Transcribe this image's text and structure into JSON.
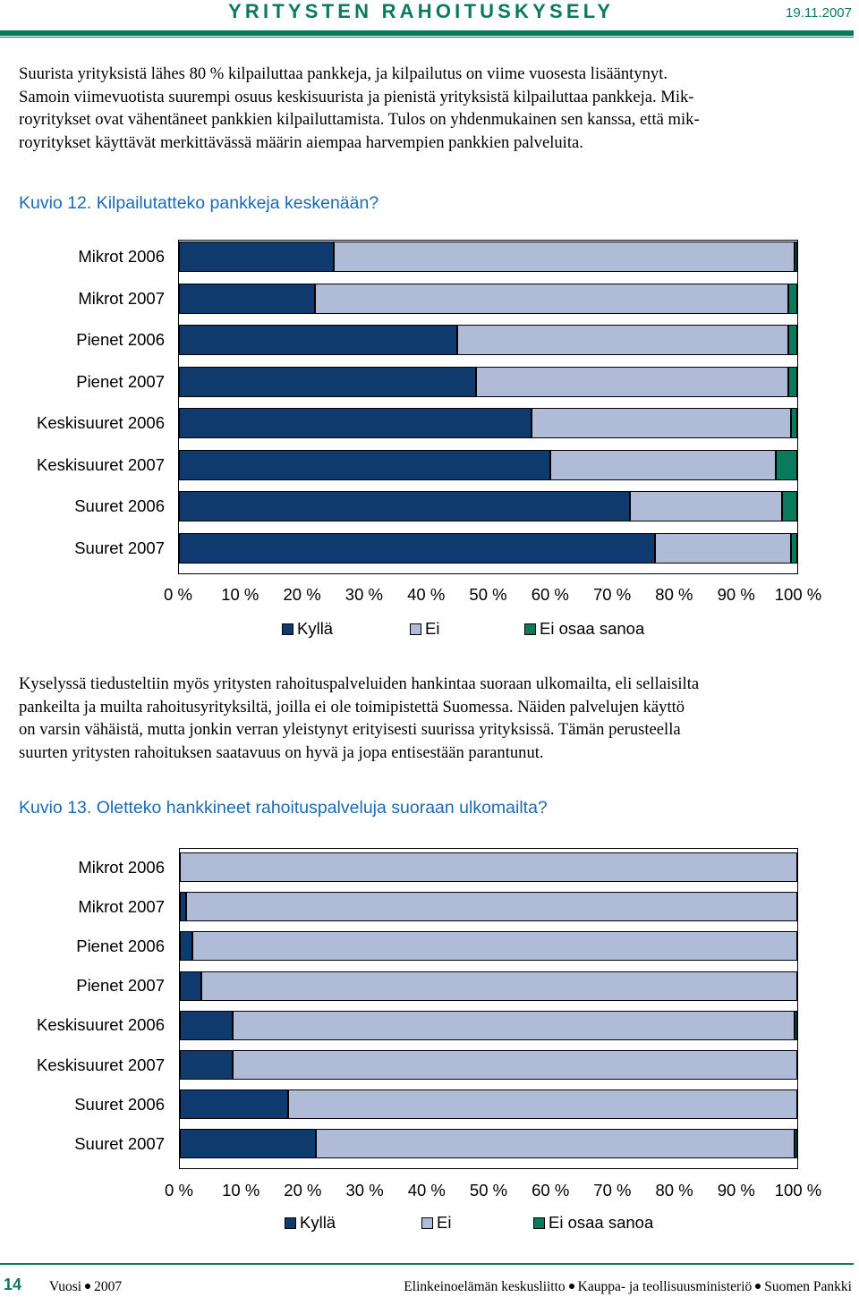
{
  "header": {
    "title": "YRITYSTEN RAHOITUSKYSELY",
    "date": "19.11.2007",
    "accent_color": "#0a7a5c"
  },
  "intro_lines": [
    "Suurista yrityksistä lähes 80 % kilpailuttaa pankkeja, ja kilpailutus on viime vuosesta lisääntynyt.",
    "Samoin viimevuotista suurempi osuus keskisuurista ja pienistä yrityksistä kilpailuttaa pankkeja. Mik-",
    "royritykset ovat vähentäneet pankkien kilpailuttamista. Tulos on yhdenmukainen sen kanssa, että mik-",
    "royritykset käyttävät merkittävässä määrin aiempaa harvempien pankkien palveluita."
  ],
  "middle_lines": [
    "Kyselyssä tiedusteltiin myös yritysten rahoituspalveluiden hankintaa suoraan ulkomailta, eli sellaisilta",
    "pankeilta ja muilta rahoitusyrityksiltä, joilla ei ole toimipistettä Suomessa. Näiden palvelujen käyttö",
    "on varsin vähäistä, mutta jonkin verran yleistynyt erityisesti suurissa yrityksissä. Tämän perusteella",
    "suurten yritysten rahoituksen saatavuus on hyvä ja jopa entisestään parantunut."
  ],
  "chart_data": [
    {
      "type": "bar",
      "orientation": "horizontal-stacked-100",
      "title": "Kuvio 12. Kilpailutatteko pankkeja keskenään?",
      "categories": [
        "Mikrot 2006",
        "Mikrot 2007",
        "Pienet 2006",
        "Pienet 2007",
        "Keskisuuret 2006",
        "Keskisuuret 2007",
        "Suuret 2006",
        "Suuret 2007"
      ],
      "series": [
        {
          "name": "Kyllä",
          "color": "#0e3a6e",
          "values": [
            25,
            22,
            45,
            48,
            57,
            60,
            73,
            77
          ]
        },
        {
          "name": "Ei",
          "color": "#b0bbd8",
          "values": [
            74.5,
            76.5,
            53.5,
            50.5,
            42,
            36.5,
            24.5,
            22
          ]
        },
        {
          "name": "Ei osaa sanoa",
          "color": "#0a7a5c",
          "values": [
            0.5,
            1.5,
            1.5,
            1.5,
            1,
            3.5,
            2.5,
            1
          ]
        }
      ],
      "xticks": [
        "0 %",
        "10 %",
        "20 %",
        "30 %",
        "40 %",
        "50 %",
        "60 %",
        "70 %",
        "80 %",
        "90 %",
        "100 %"
      ],
      "xlim": [
        0,
        100
      ],
      "legend": "bottom"
    },
    {
      "type": "bar",
      "orientation": "horizontal-stacked-100",
      "title": "Kuvio 13. Oletteko hankkineet rahoituspalveluja suoraan ulkomailta?",
      "categories": [
        "Mikrot 2006",
        "Mikrot 2007",
        "Pienet 2006",
        "Pienet 2007",
        "Keskisuuret 2006",
        "Keskisuuret 2007",
        "Suuret 2006",
        "Suuret 2007"
      ],
      "series": [
        {
          "name": "Kyllä",
          "color": "#0e3a6e",
          "values": [
            0,
            1,
            2,
            3.5,
            8.5,
            8.5,
            17.5,
            22
          ]
        },
        {
          "name": "Ei",
          "color": "#b0bbd8",
          "values": [
            100,
            99,
            98,
            96.5,
            91,
            91.5,
            82.5,
            77.5
          ]
        },
        {
          "name": "Ei osaa sanoa",
          "color": "#0a7a5c",
          "values": [
            0,
            0,
            0,
            0,
            0.5,
            0,
            0,
            0.5
          ]
        }
      ],
      "xticks": [
        "0 %",
        "10 %",
        "20 %",
        "30 %",
        "40 %",
        "50 %",
        "60 %",
        "70 %",
        "80 %",
        "90 %",
        "100 %"
      ],
      "xlim": [
        0,
        100
      ],
      "legend": "bottom"
    }
  ],
  "footer": {
    "page_number": "14",
    "year_prefix": "Vuosi",
    "year": "2007",
    "organizations": [
      "Elinkeinoelämän keskusliitto",
      "Kauppa- ja teollisuusministeriö",
      "Suomen Pankki"
    ]
  }
}
